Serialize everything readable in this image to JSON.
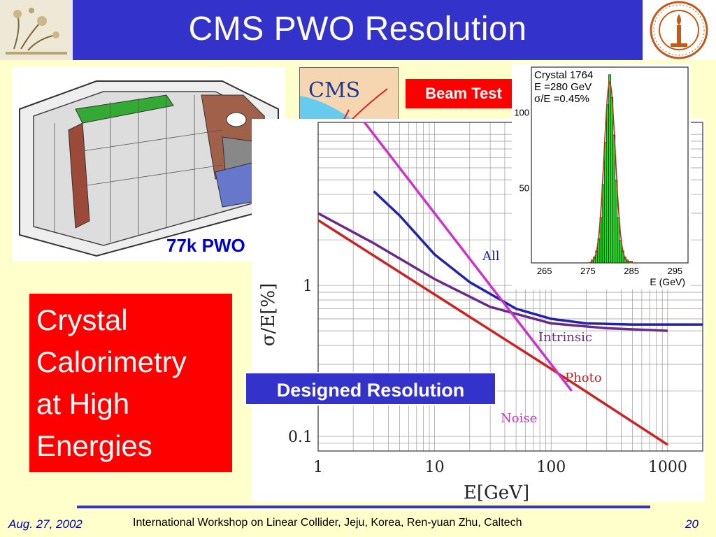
{
  "header": {
    "title": "CMS PWO Resolution"
  },
  "labels": {
    "beam_test": "Beam Test",
    "pwo": "77k PWO",
    "designed": "Designed Resolution",
    "cms_logo": "CMS"
  },
  "red_box": {
    "lines": [
      "Crystal",
      "Calorimetry",
      "at High",
      "Energies"
    ]
  },
  "footer": {
    "date": "Aug. 27, 2002",
    "center": "International Workshop on Linear Collider, Jeju, Korea, Ren-yuan Zhu, Caltech",
    "page": "20"
  },
  "colors": {
    "title_bg": "#3333cc",
    "slide_bg": "#ffffcc",
    "box_red": "#ff0000"
  },
  "chart_data": [
    {
      "type": "bar",
      "annotation": [
        "Crystal 1764",
        "E =280 GeV",
        "σ/E =0.45%"
      ],
      "xlabel": "E (GeV)",
      "xlim": [
        262,
        298
      ],
      "ylim": [
        0,
        130
      ],
      "x_ticks": [
        "265",
        "275",
        "285",
        "295"
      ],
      "y_ticks": [
        "50",
        "100"
      ],
      "bins_x": [
        276,
        276.5,
        277,
        277.5,
        278,
        278.5,
        279,
        279.5,
        280,
        280.5,
        281,
        281.5,
        282,
        282.5,
        283,
        283.5,
        284,
        284.5,
        285
      ],
      "bins_y": [
        2,
        4,
        8,
        16,
        30,
        52,
        80,
        105,
        125,
        110,
        85,
        55,
        30,
        15,
        8,
        4,
        2,
        1,
        1
      ]
    },
    {
      "type": "line",
      "xlabel": "E[GeV]",
      "ylabel": "σ/E[%]",
      "xscale": "log",
      "yscale": "log",
      "xlim": [
        1,
        2000
      ],
      "ylim": [
        0.08,
        12
      ],
      "x_ticks": [
        "1",
        "10",
        "100",
        "1000"
      ],
      "y_ticks": [
        "0.1",
        "1"
      ],
      "series": [
        {
          "name": "All",
          "color": "#2222aa",
          "x": [
            3,
            5,
            10,
            20,
            50,
            100,
            200,
            500,
            2000
          ],
          "y": [
            4.2,
            2.9,
            1.6,
            1.05,
            0.7,
            0.6,
            0.56,
            0.55,
            0.55
          ]
        },
        {
          "name": "Intrinsic",
          "color": "#6a2a8a",
          "x": [
            1,
            3,
            10,
            30,
            100,
            300,
            1000
          ],
          "y": [
            3.0,
            1.9,
            1.1,
            0.72,
            0.56,
            0.52,
            0.5
          ]
        },
        {
          "name": "Photo",
          "color": "#cc2222",
          "x": [
            1,
            10,
            100,
            1000
          ],
          "y": [
            2.7,
            0.87,
            0.28,
            0.088
          ]
        },
        {
          "name": "Noise",
          "color": "#cc33cc",
          "x": [
            2.5,
            10,
            50,
            150
          ],
          "y": [
            12,
            3,
            0.6,
            0.2
          ]
        }
      ]
    }
  ]
}
